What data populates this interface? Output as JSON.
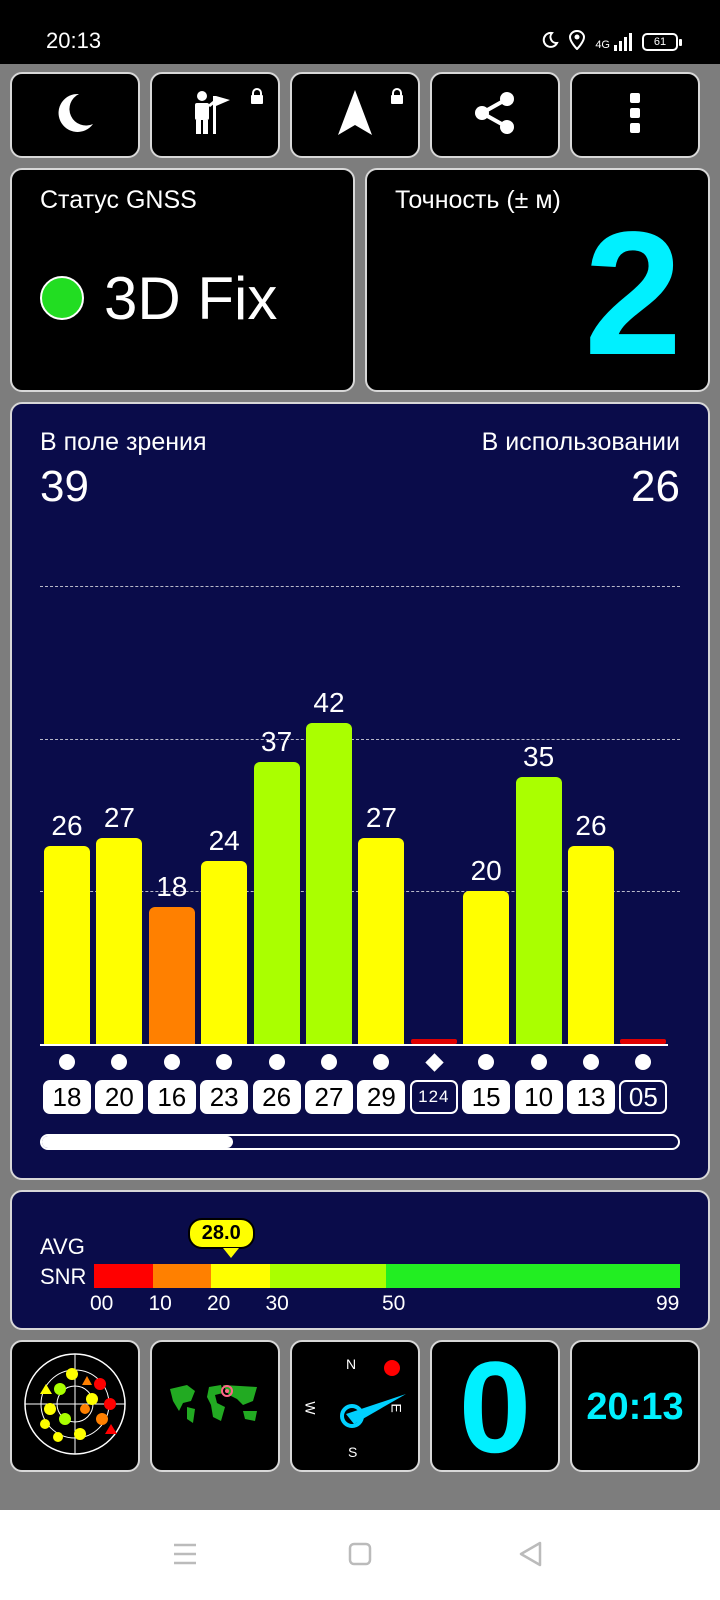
{
  "status_bar": {
    "time": "20:13",
    "network": "4G",
    "battery": "61"
  },
  "toolbar": {
    "icons": [
      "moon-icon",
      "person-flag-icon",
      "navigation-arrow-icon",
      "share-icon",
      "more-vert-icon"
    ]
  },
  "gnss": {
    "label": "Статус GNSS",
    "value": "3D Fix",
    "color": "#22dd22"
  },
  "accuracy": {
    "label": "Точность (± м)",
    "value": "2",
    "color": "#00f0ff"
  },
  "satellites": {
    "in_view_label": "В поле зрения",
    "in_view": "39",
    "in_use_label": "В использовании",
    "in_use": "26"
  },
  "chart_data": {
    "type": "bar",
    "categories": [
      "18",
      "20",
      "16",
      "23",
      "26",
      "27",
      "29",
      "124",
      "15",
      "10",
      "13",
      "05"
    ],
    "values": [
      26,
      27,
      18,
      24,
      37,
      42,
      27,
      0,
      20,
      35,
      26,
      0
    ],
    "labels": [
      "26",
      "27",
      "18",
      "24",
      "37",
      "42",
      "27",
      "",
      "20",
      "35",
      "26",
      ""
    ],
    "colors": [
      "#ffff00",
      "#ffff00",
      "#ff8000",
      "#ffff00",
      "#aaff00",
      "#aaff00",
      "#ffff00",
      "#e00000",
      "#ffff00",
      "#aaff00",
      "#ffff00",
      "#e00000"
    ],
    "markers": [
      "circle",
      "circle",
      "circle",
      "circle",
      "circle",
      "circle",
      "circle",
      "diamond",
      "circle",
      "circle",
      "circle",
      "circle"
    ],
    "used": [
      true,
      true,
      true,
      true,
      true,
      true,
      true,
      false,
      true,
      true,
      true,
      false
    ],
    "ylim": [
      0,
      60
    ],
    "gridlines": [
      20,
      40,
      60
    ]
  },
  "scroll_progress": 0.3,
  "snr": {
    "label_line1": "AVG",
    "label_line2": "SNR",
    "avg": "28.0",
    "avg_value": 28.0,
    "ticks": [
      "00",
      "10",
      "20",
      "30",
      "50",
      "99"
    ],
    "segment_colors": [
      "#ff0000",
      "#ff8000",
      "#ffff00",
      "#aaff00",
      "#22ee22"
    ]
  },
  "compass": {
    "n": "N",
    "s": "S",
    "e": "E",
    "w": "W"
  },
  "speed": {
    "value": "0"
  },
  "clock": {
    "value": "20:13"
  }
}
